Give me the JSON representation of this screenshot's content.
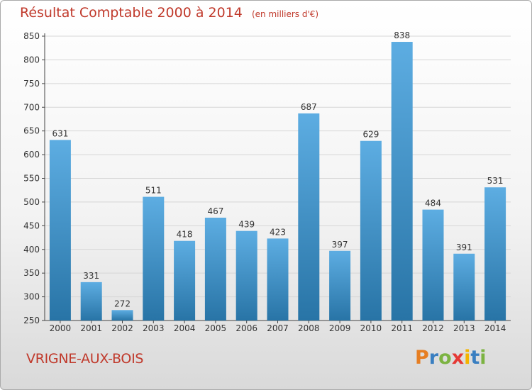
{
  "title": "Résultat Comptable 2000 à 2014",
  "subtitle": "(en milliers d'€)",
  "location": "VRIGNE-AUX-BOIS",
  "logo": {
    "letters": [
      "P",
      "r",
      "o",
      "x",
      "i",
      "t",
      "i"
    ],
    "colors": [
      "#e67e22",
      "#3a7fc1",
      "#7cb342",
      "#e53935",
      "#f4b400",
      "#3a7fc1",
      "#7cb342"
    ]
  },
  "colors": {
    "bar_light": "#5dade2",
    "bar_dark": "#2874a6",
    "accent": "#c0392b"
  },
  "chart_data": {
    "type": "bar",
    "categories": [
      "2000",
      "2001",
      "2002",
      "2003",
      "2004",
      "2005",
      "2006",
      "2007",
      "2008",
      "2009",
      "2010",
      "2011",
      "2012",
      "2013",
      "2014"
    ],
    "values": [
      631,
      331,
      272,
      511,
      418,
      467,
      439,
      423,
      687,
      397,
      629,
      838,
      484,
      391,
      531
    ],
    "title": "Résultat Comptable 2000 à 2014",
    "xlabel": "",
    "ylabel": "",
    "ylim": [
      250,
      850
    ],
    "yticks": [
      250,
      300,
      350,
      400,
      450,
      500,
      550,
      600,
      650,
      700,
      750,
      800,
      850
    ],
    "grid": true
  }
}
